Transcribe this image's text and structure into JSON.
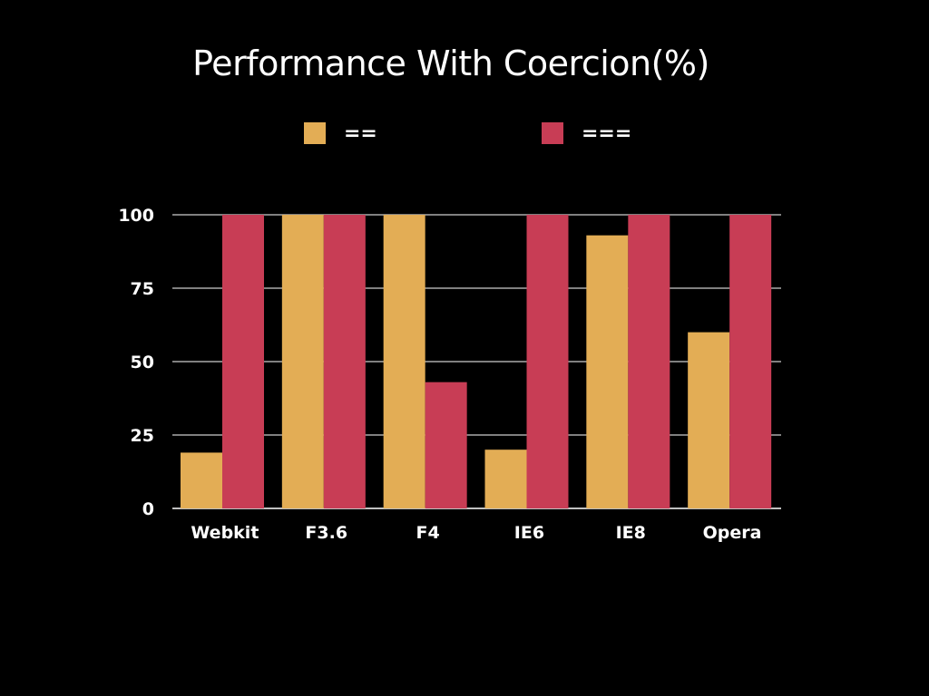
{
  "colors": {
    "background": "#000000",
    "series_eq": "#e3ad55",
    "series_strict_eq": "#c83d55",
    "grid": "#ffffff",
    "text": "#ffffff"
  },
  "chart_data": {
    "type": "bar",
    "title": "Performance With Coercion(%)",
    "categories": [
      "Webkit",
      "F3.6",
      "F4",
      "IE6",
      "IE8",
      "Opera"
    ],
    "series": [
      {
        "name": "==",
        "values": [
          19,
          100,
          100,
          20,
          93,
          60
        ]
      },
      {
        "name": "===",
        "values": [
          100,
          100,
          43,
          100,
          100,
          100
        ]
      }
    ],
    "yticks": [
      0,
      25,
      50,
      75,
      100
    ],
    "ylim": [
      0,
      100
    ],
    "xlabel": "",
    "ylabel": "",
    "grid": true,
    "legend_position": "top"
  }
}
